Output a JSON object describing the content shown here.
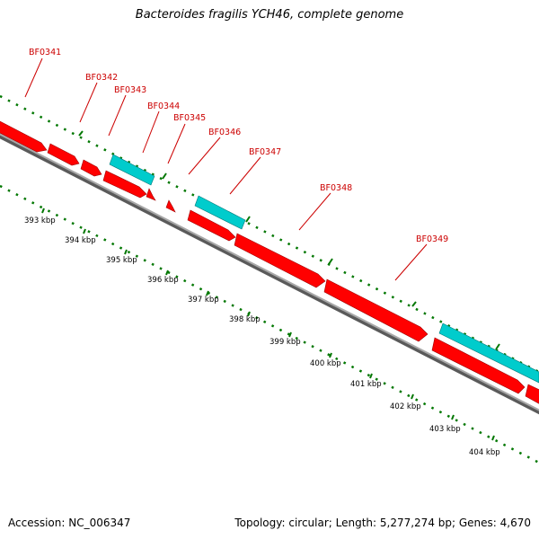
{
  "title": "Bacteroides fragilis YCH46, complete genome",
  "footer": {
    "accession": "Accession: NC_006347",
    "summary": "Topology: circular; Length: 5,277,274 bp; Genes: 4,670"
  },
  "colors": {
    "forward_cds": "#ff0000",
    "reverse_cds": "#ff0000",
    "rna": "#00cccc",
    "backbone": "#808080",
    "tick": "#007700",
    "label": "#cc0000",
    "kbp_label": "#000000"
  },
  "genes": [
    {
      "name": "BF0341"
    },
    {
      "name": "BF0342"
    },
    {
      "name": "BF0343"
    },
    {
      "name": "BF0344"
    },
    {
      "name": "BF0345"
    },
    {
      "name": "BF0346"
    },
    {
      "name": "BF0347"
    },
    {
      "name": "BF0348"
    },
    {
      "name": "BF0349"
    }
  ],
  "scale_labels": [
    "393 kbp",
    "394 kbp",
    "395 kbp",
    "396 kbp",
    "397 kbp",
    "398 kbp",
    "399 kbp",
    "400 kbp",
    "401 kbp",
    "402 kbp",
    "403 kbp",
    "404 kbp"
  ]
}
